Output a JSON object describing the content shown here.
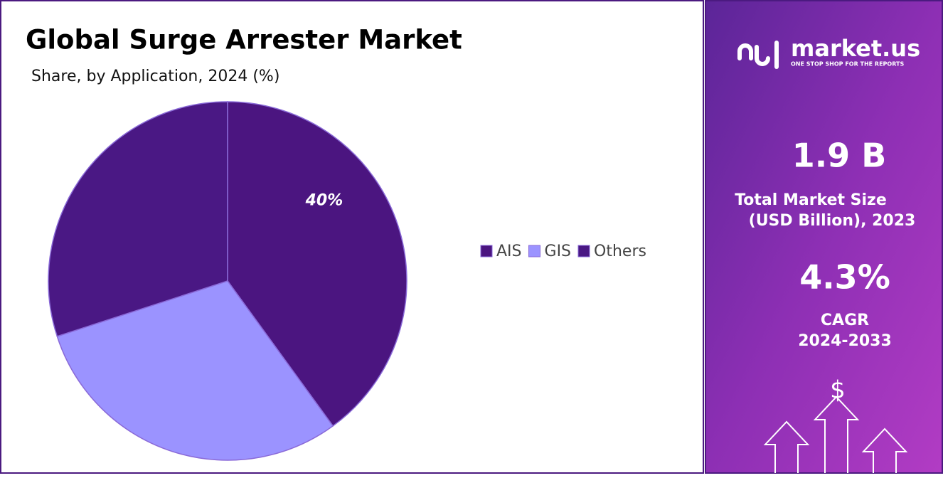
{
  "chart_data": {
    "type": "pie",
    "title": "Global Surge Arrester Market",
    "subtitle": "Share, by Application, 2024 (%)",
    "categories": [
      "AIS",
      "GIS",
      "Others"
    ],
    "values": [
      40,
      30,
      30
    ],
    "value_labels": [
      "40%",
      null,
      null
    ],
    "colors": [
      "#4b1580",
      "#9b93ff",
      "#4a1884"
    ],
    "legend": "right"
  },
  "sidebar": {
    "brand": "market.us",
    "tagline": "ONE STOP SHOP FOR THE REPORTS",
    "market_size": "1.9 B",
    "market_size_label_1": "Total Market Size",
    "market_size_label_2": "(USD Billion), 2023",
    "cagr": "4.3%",
    "cagr_label_1": "CAGR",
    "cagr_label_2": "2024-2033",
    "icon": "$"
  }
}
